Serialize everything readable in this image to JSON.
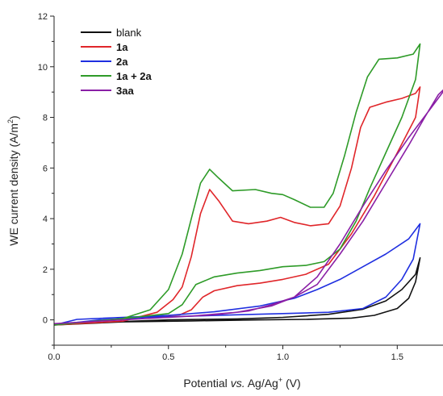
{
  "chart_data": {
    "type": "line",
    "title": "",
    "xlabel_parts": [
      "Potential ",
      "vs.",
      " Ag/Ag",
      "+",
      " (V)"
    ],
    "ylabel_parts": [
      "WE current density (A/m",
      "2",
      ")"
    ],
    "xlim": [
      0.0,
      1.7
    ],
    "ylim": [
      -1.0,
      12.0
    ],
    "x_ticks": [
      0.0,
      0.5,
      1.0,
      1.5
    ],
    "x_tick_labels": [
      "0.0",
      "0.5",
      "1.0",
      "1.5"
    ],
    "y_ticks": [
      0,
      2,
      4,
      6,
      8,
      10,
      12
    ],
    "y_tick_labels": [
      "0",
      "2",
      "4",
      "6",
      "8",
      "10",
      "12"
    ],
    "grid": false,
    "legend_position": "top-left",
    "series": [
      {
        "name": "blank",
        "color": "#111111",
        "points": [
          [
            0.0,
            -0.2
          ],
          [
            0.3,
            -0.08
          ],
          [
            0.6,
            -0.04
          ],
          [
            0.9,
            0.0
          ],
          [
            1.1,
            0.02
          ],
          [
            1.3,
            0.07
          ],
          [
            1.4,
            0.18
          ],
          [
            1.5,
            0.45
          ],
          [
            1.55,
            0.85
          ],
          [
            1.58,
            1.5
          ],
          [
            1.6,
            2.45
          ],
          [
            1.58,
            1.8
          ],
          [
            1.52,
            1.2
          ],
          [
            1.45,
            0.75
          ],
          [
            1.35,
            0.42
          ],
          [
            1.2,
            0.22
          ],
          [
            1.0,
            0.1
          ],
          [
            0.8,
            0.04
          ],
          [
            0.5,
            0.0
          ],
          [
            0.2,
            -0.1
          ],
          [
            0.0,
            -0.2
          ]
        ]
      },
      {
        "name": "1a",
        "color": "#e0262a",
        "points": [
          [
            0.0,
            -0.2
          ],
          [
            0.3,
            -0.05
          ],
          [
            0.45,
            0.3
          ],
          [
            0.52,
            0.8
          ],
          [
            0.56,
            1.3
          ],
          [
            0.6,
            2.5
          ],
          [
            0.64,
            4.2
          ],
          [
            0.68,
            5.15
          ],
          [
            0.72,
            4.7
          ],
          [
            0.78,
            3.9
          ],
          [
            0.85,
            3.8
          ],
          [
            0.93,
            3.9
          ],
          [
            0.99,
            4.05
          ],
          [
            1.05,
            3.85
          ],
          [
            1.12,
            3.72
          ],
          [
            1.2,
            3.8
          ],
          [
            1.25,
            4.5
          ],
          [
            1.3,
            6.0
          ],
          [
            1.34,
            7.6
          ],
          [
            1.38,
            8.4
          ],
          [
            1.45,
            8.6
          ],
          [
            1.52,
            8.75
          ],
          [
            1.58,
            8.95
          ],
          [
            1.6,
            9.2
          ],
          [
            1.58,
            8.0
          ],
          [
            1.5,
            6.6
          ],
          [
            1.4,
            4.9
          ],
          [
            1.3,
            3.4
          ],
          [
            1.2,
            2.2
          ],
          [
            1.1,
            1.8
          ],
          [
            1.0,
            1.6
          ],
          [
            0.9,
            1.45
          ],
          [
            0.8,
            1.35
          ],
          [
            0.7,
            1.15
          ],
          [
            0.65,
            0.9
          ],
          [
            0.6,
            0.4
          ],
          [
            0.55,
            0.2
          ],
          [
            0.3,
            0.05
          ],
          [
            0.0,
            -0.2
          ]
        ]
      },
      {
        "name": "2a",
        "color": "#1f2fe0",
        "points": [
          [
            0.0,
            -0.2
          ],
          [
            0.2,
            0.0
          ],
          [
            0.4,
            0.1
          ],
          [
            0.6,
            0.15
          ],
          [
            0.8,
            0.2
          ],
          [
            1.0,
            0.25
          ],
          [
            1.2,
            0.3
          ],
          [
            1.35,
            0.45
          ],
          [
            1.45,
            0.9
          ],
          [
            1.52,
            1.6
          ],
          [
            1.57,
            2.4
          ],
          [
            1.6,
            3.8
          ],
          [
            1.55,
            3.2
          ],
          [
            1.45,
            2.6
          ],
          [
            1.35,
            2.1
          ],
          [
            1.25,
            1.6
          ],
          [
            1.15,
            1.2
          ],
          [
            1.05,
            0.85
          ],
          [
            0.9,
            0.55
          ],
          [
            0.7,
            0.32
          ],
          [
            0.5,
            0.18
          ],
          [
            0.3,
            0.1
          ],
          [
            0.1,
            0.02
          ],
          [
            0.0,
            -0.2
          ]
        ]
      },
      {
        "name": "1a + 2a",
        "color": "#2e9b28",
        "points": [
          [
            0.0,
            -0.2
          ],
          [
            0.3,
            0.05
          ],
          [
            0.42,
            0.4
          ],
          [
            0.5,
            1.2
          ],
          [
            0.56,
            2.6
          ],
          [
            0.6,
            4.0
          ],
          [
            0.64,
            5.4
          ],
          [
            0.68,
            5.95
          ],
          [
            0.72,
            5.6
          ],
          [
            0.78,
            5.1
          ],
          [
            0.88,
            5.15
          ],
          [
            0.95,
            5.0
          ],
          [
            1.0,
            4.95
          ],
          [
            1.05,
            4.75
          ],
          [
            1.12,
            4.45
          ],
          [
            1.18,
            4.45
          ],
          [
            1.22,
            5.0
          ],
          [
            1.27,
            6.5
          ],
          [
            1.32,
            8.2
          ],
          [
            1.37,
            9.6
          ],
          [
            1.42,
            10.3
          ],
          [
            1.5,
            10.35
          ],
          [
            1.57,
            10.5
          ],
          [
            1.6,
            10.9
          ],
          [
            1.58,
            9.5
          ],
          [
            1.52,
            8.0
          ],
          [
            1.45,
            6.6
          ],
          [
            1.38,
            5.2
          ],
          [
            1.32,
            3.9
          ],
          [
            1.25,
            2.8
          ],
          [
            1.18,
            2.3
          ],
          [
            1.1,
            2.15
          ],
          [
            1.0,
            2.1
          ],
          [
            0.9,
            1.95
          ],
          [
            0.8,
            1.85
          ],
          [
            0.7,
            1.7
          ],
          [
            0.62,
            1.4
          ],
          [
            0.56,
            0.6
          ],
          [
            0.5,
            0.25
          ],
          [
            0.3,
            0.05
          ],
          [
            0.0,
            -0.2
          ]
        ]
      },
      {
        "name": "3aa",
        "color": "#8a1fa6",
        "points": [
          [
            0.0,
            -0.15
          ],
          [
            0.3,
            0.0
          ],
          [
            0.5,
            0.1
          ],
          [
            0.7,
            0.2
          ],
          [
            0.85,
            0.35
          ],
          [
            0.95,
            0.6
          ],
          [
            1.05,
            0.9
          ],
          [
            1.15,
            1.4
          ],
          [
            1.25,
            2.6
          ],
          [
            1.35,
            3.9
          ],
          [
            1.45,
            5.4
          ],
          [
            1.55,
            6.9
          ],
          [
            1.62,
            8.0
          ],
          [
            1.68,
            8.9
          ],
          [
            1.72,
            9.25
          ],
          [
            1.65,
            8.4
          ],
          [
            1.55,
            7.2
          ],
          [
            1.45,
            5.9
          ],
          [
            1.35,
            4.5
          ],
          [
            1.25,
            3.0
          ],
          [
            1.15,
            1.7
          ],
          [
            1.05,
            0.9
          ],
          [
            0.95,
            0.55
          ],
          [
            0.8,
            0.3
          ],
          [
            0.6,
            0.15
          ],
          [
            0.4,
            0.05
          ],
          [
            0.2,
            -0.05
          ],
          [
            0.0,
            -0.15
          ]
        ]
      }
    ]
  }
}
